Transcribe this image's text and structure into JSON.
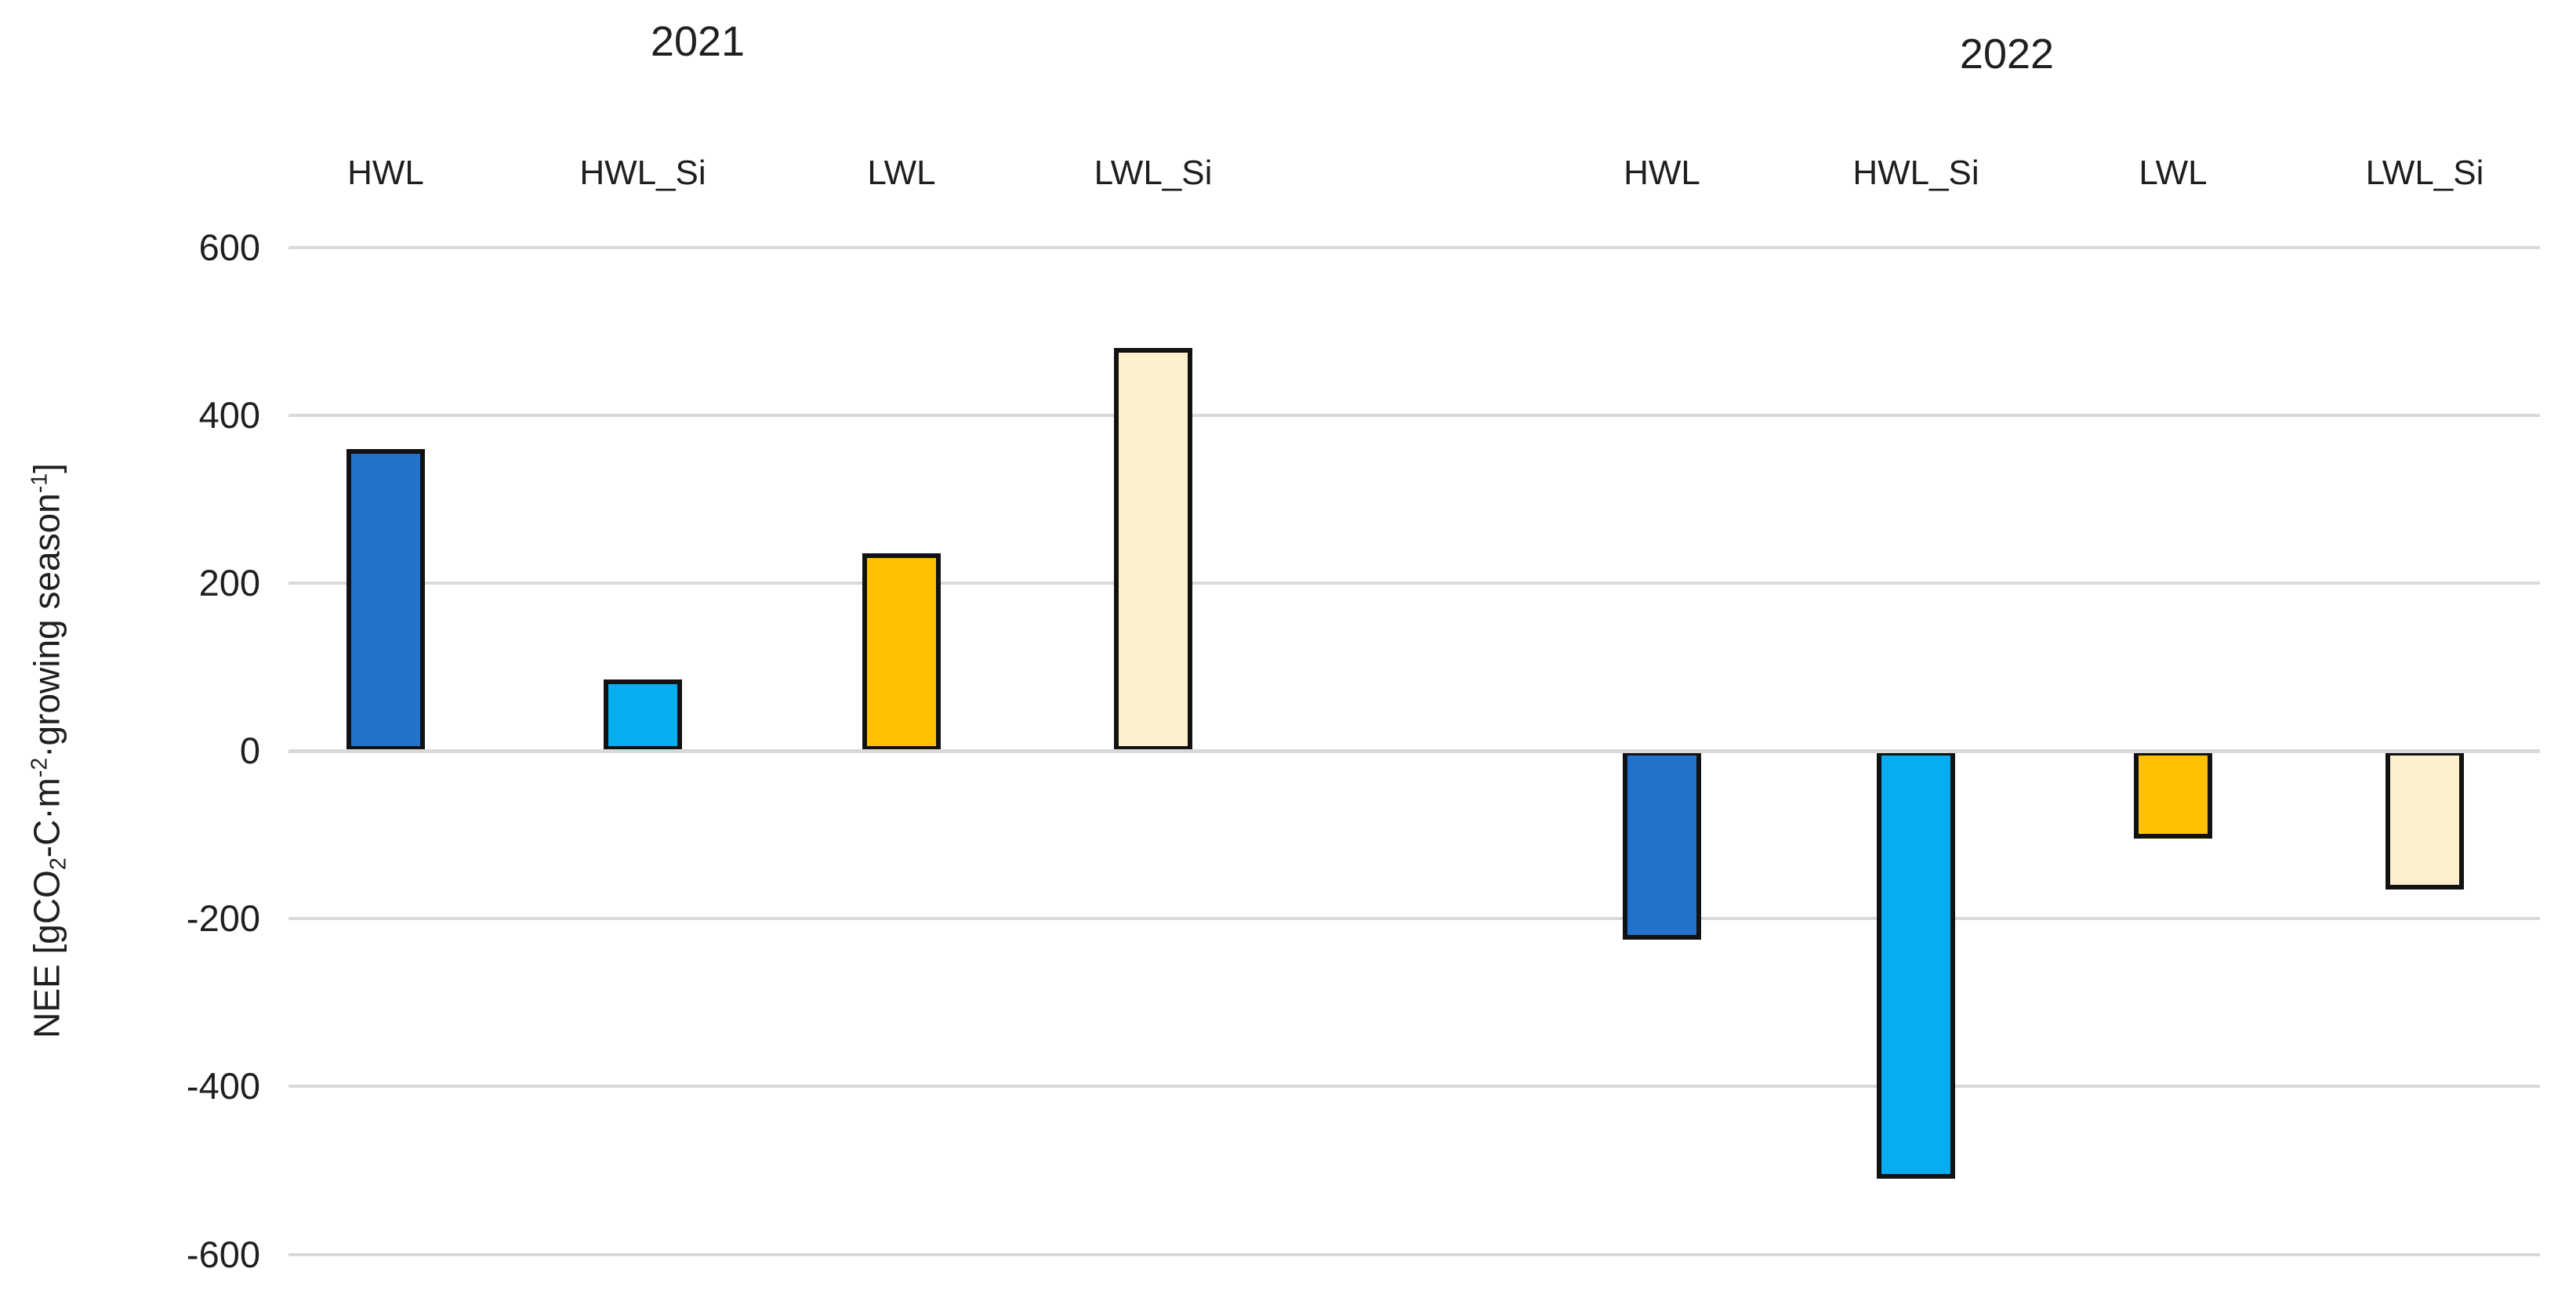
{
  "chart_data": {
    "type": "bar",
    "title": "",
    "ylabel_plain": "NEE [gCO2-C·m-2·growing season-1]",
    "ylabel_parts": [
      {
        "text": "NEE [gCO"
      },
      {
        "text": "2",
        "style": "sub"
      },
      {
        "text": "-C·m"
      },
      {
        "text": "-2",
        "style": "sup"
      },
      {
        "text": "·growing season"
      },
      {
        "text": "-1",
        "style": "sup"
      },
      {
        "text": "]"
      }
    ],
    "ylim": [
      -600,
      600
    ],
    "yticks": [
      600,
      400,
      200,
      0,
      -200,
      -400,
      -600
    ],
    "grid": true,
    "legend": "none",
    "gridline_color": "#D9D9D9",
    "bar_border_color": "#121212",
    "background_color": "#FFFFFF",
    "groups": [
      {
        "label": "2021",
        "categories": [
          "HWL",
          "HWL_Si",
          "LWL",
          "LWL_Si"
        ],
        "values": [
          360,
          85,
          235,
          480
        ],
        "colors": [
          "#2272CC",
          "#06AEF0",
          "#FFC000",
          "#FCF0CE"
        ]
      },
      {
        "label": "2022",
        "categories": [
          "HWL",
          "HWL_Si",
          "LWL",
          "LWL_Si"
        ],
        "values": [
          -225,
          -510,
          -105,
          -165
        ],
        "colors": [
          "#2272CC",
          "#06AEF0",
          "#FFC000",
          "#FCF0CE"
        ]
      }
    ],
    "units": "gCO2-C per m2 per growing season"
  }
}
